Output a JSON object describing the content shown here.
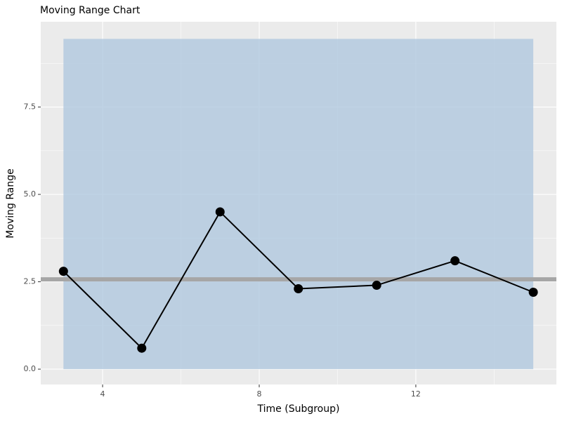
{
  "chart_data": {
    "type": "line",
    "title": "Moving Range Chart",
    "x_label": "Time (Subgroup)",
    "y_label": "Moving Range",
    "x": [
      3,
      5,
      7,
      9,
      11,
      13,
      15
    ],
    "series": [
      {
        "color": "#000000",
        "values": [
          2.8,
          0.6,
          4.5,
          2.3,
          2.4,
          3.1,
          2.2
        ]
      }
    ],
    "center_line": 2.57,
    "center_color": "#a6a6a6",
    "control_limits": {
      "lower": 0,
      "upper": 9.45,
      "color": "#b0c8de"
    },
    "xlim": [
      2.42,
      15.59
    ],
    "xticks": [
      4,
      8,
      12
    ],
    "ylim": [
      -0.44,
      9.94
    ],
    "yticks": [
      {
        "value": 0,
        "label": "0.0"
      },
      {
        "value": 2.5,
        "label": "2.5"
      },
      {
        "value": 5,
        "label": "5.0"
      },
      {
        "value": 7.5,
        "label": "7.5"
      }
    ],
    "grid": true
  }
}
